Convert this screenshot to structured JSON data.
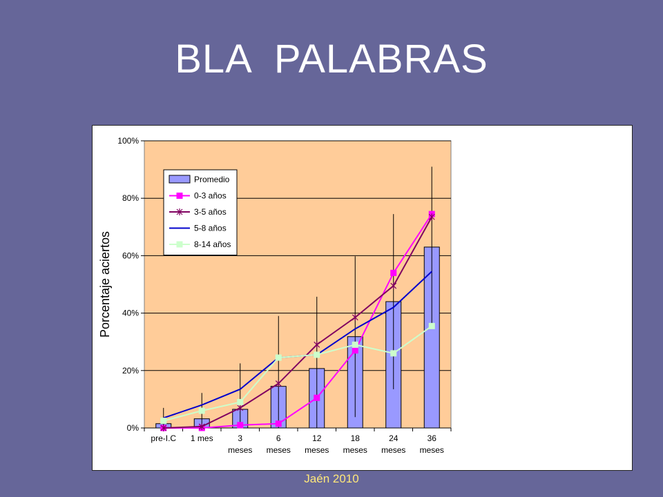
{
  "slide": {
    "title": "BLA  PALABRAS",
    "footer": "Jaén 2010"
  },
  "colors": {
    "background": "#666699",
    "plot_area": "#ffcc99",
    "footer_text": "#ffe87a"
  },
  "chart_data": {
    "type": "bar",
    "title": "",
    "xlabel": "",
    "ylabel": "Porcentaje aciertos",
    "ylim": [
      0,
      1
    ],
    "yticks": [
      "0%",
      "20%",
      "40%",
      "60%",
      "80%",
      "100%"
    ],
    "ytick_values": [
      0,
      0.2,
      0.4,
      0.6,
      0.8,
      1.0
    ],
    "grid": true,
    "legend_position": "top-left",
    "categories": [
      [
        "pre-I.C"
      ],
      [
        "1 mes"
      ],
      [
        "3",
        "meses"
      ],
      [
        "6",
        "meses"
      ],
      [
        "12",
        "meses"
      ],
      [
        "18",
        "meses"
      ],
      [
        "24",
        "meses"
      ],
      [
        "36",
        "meses"
      ]
    ],
    "series": [
      {
        "name": "Promedio",
        "kind": "bar",
        "color": "#9999ff",
        "values": [
          0.015,
          0.032,
          0.065,
          0.145,
          0.207,
          0.318,
          0.44,
          0.63
        ],
        "error": [
          0.055,
          0.09,
          0.16,
          0.245,
          0.25,
          0.28,
          0.305,
          0.28
        ]
      },
      {
        "name": "0-3 años",
        "kind": "line",
        "marker": "square",
        "color": "#ff00ff",
        "values": [
          0.0,
          0.0,
          0.01,
          0.015,
          0.105,
          0.27,
          0.54,
          0.745
        ]
      },
      {
        "name": "3-5 años",
        "kind": "line",
        "marker": "star",
        "color": "#800060",
        "values": [
          0.0,
          0.005,
          0.07,
          0.155,
          0.29,
          0.385,
          0.495,
          0.735
        ]
      },
      {
        "name": "5-8 años",
        "kind": "line",
        "marker": "none",
        "color": "#0000cc",
        "values": [
          0.035,
          0.08,
          0.135,
          0.245,
          0.255,
          0.345,
          0.42,
          0.545
        ]
      },
      {
        "name": "8-14 años",
        "kind": "line",
        "marker": "square",
        "color": "#ccffcc",
        "values": [
          0.025,
          0.06,
          0.09,
          0.245,
          0.255,
          0.29,
          0.26,
          0.355
        ]
      }
    ]
  }
}
